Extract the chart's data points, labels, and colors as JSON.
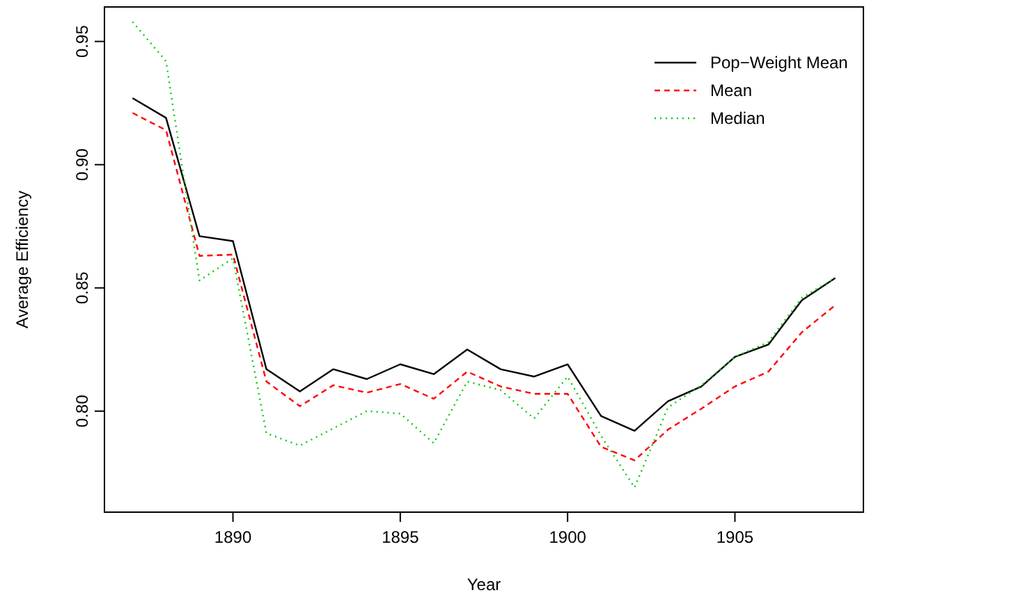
{
  "chart_data": {
    "type": "line",
    "xlabel": "Year",
    "ylabel": "Average Efficiency",
    "x": [
      1887,
      1888,
      1889,
      1890,
      1891,
      1892,
      1893,
      1894,
      1895,
      1896,
      1897,
      1898,
      1899,
      1900,
      1901,
      1902,
      1903,
      1904,
      1905,
      1906,
      1907,
      1908
    ],
    "xlim": [
      1886.16,
      1908.84
    ],
    "xticks": [
      1890,
      1895,
      1900,
      1905
    ],
    "ylim": [
      0.759,
      0.964
    ],
    "yticks": [
      {
        "value": 0.8,
        "label": "0.80"
      },
      {
        "value": 0.85,
        "label": "0.85"
      },
      {
        "value": 0.9,
        "label": "0.90"
      },
      {
        "value": 0.95,
        "label": "0.95"
      }
    ],
    "grid": false,
    "legend": "top right",
    "series": [
      {
        "name": "Pop−Weight Mean",
        "color": "#000000",
        "line_style": "solid",
        "values": [
          0.927,
          0.919,
          0.871,
          0.869,
          0.817,
          0.808,
          0.817,
          0.813,
          0.819,
          0.815,
          0.825,
          0.817,
          0.814,
          0.819,
          0.798,
          0.792,
          0.804,
          0.81,
          0.822,
          0.827,
          0.845,
          0.854
        ]
      },
      {
        "name": "Mean",
        "color": "#ff0000",
        "line_style": "dashed",
        "values": [
          0.921,
          0.914,
          0.863,
          0.8635,
          0.812,
          0.802,
          0.8105,
          0.8075,
          0.811,
          0.805,
          0.816,
          0.81,
          0.807,
          0.807,
          0.7855,
          0.78,
          0.7925,
          0.801,
          0.81,
          0.816,
          0.832,
          0.843
        ]
      },
      {
        "name": "Median",
        "color": "#00cc00",
        "line_style": "dotted",
        "values": [
          0.958,
          0.942,
          0.853,
          0.862,
          0.791,
          0.786,
          0.793,
          0.8,
          0.799,
          0.787,
          0.812,
          0.8085,
          0.797,
          0.814,
          0.79,
          0.769,
          0.8015,
          0.8105,
          0.822,
          0.828,
          0.846,
          0.854
        ]
      }
    ]
  }
}
